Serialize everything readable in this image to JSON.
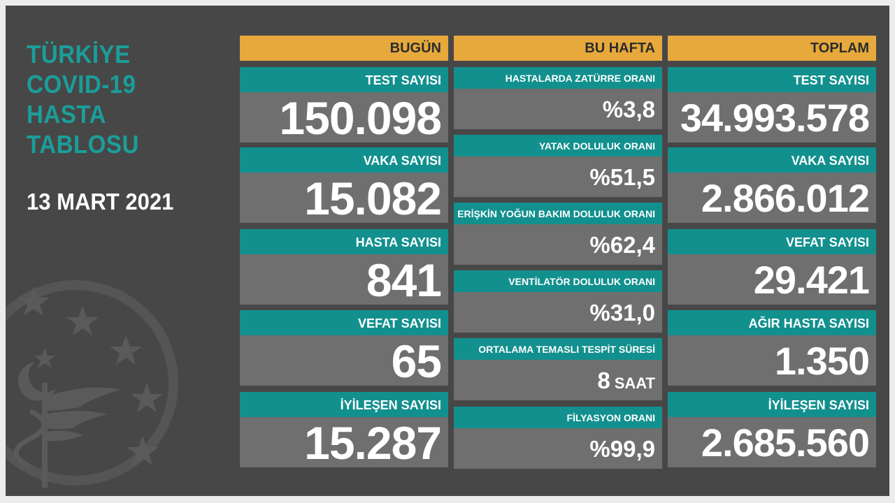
{
  "title_lines": [
    "TÜRKİYE",
    "COVID-19",
    "HASTA",
    "TABLOSU"
  ],
  "date": "13 MART 2021",
  "colors": {
    "background": "#474747",
    "teal": "#12908e",
    "orange": "#e7a93c",
    "value_bg": "#6f6f6f"
  },
  "today": {
    "header": "BUGÜN",
    "items": [
      {
        "label": "TEST SAYISI",
        "value": "150.098"
      },
      {
        "label": "VAKA SAYISI",
        "value": "15.082"
      },
      {
        "label": "HASTA SAYISI",
        "value": "841"
      },
      {
        "label": "VEFAT SAYISI",
        "value": "65"
      },
      {
        "label": "İYİLEŞEN SAYISI",
        "value": "15.287"
      }
    ]
  },
  "week": {
    "header": "BU HAFTA",
    "items": [
      {
        "label": "HASTALARDA ZATÜRRE ORANI",
        "value": "%3,8"
      },
      {
        "label": "YATAK DOLULUK ORANI",
        "value": "%51,5"
      },
      {
        "label": "ERİŞKİN YOĞUN BAKIM DOLULUK ORANI",
        "value": "%62,4"
      },
      {
        "label": "VENTİLATÖR DOLULUK ORANI",
        "value": "%31,0"
      },
      {
        "label": "ORTALAMA TEMASLI TESPİT SÜRESİ",
        "value": "8",
        "unit": "SAAT"
      },
      {
        "label": "FİLYASYON ORANI",
        "value": "%99,9"
      }
    ]
  },
  "total": {
    "header": "TOPLAM",
    "items": [
      {
        "label": "TEST SAYISI",
        "value": "34.993.578"
      },
      {
        "label": "VAKA SAYISI",
        "value": "2.866.012"
      },
      {
        "label": "VEFAT SAYISI",
        "value": "29.421"
      },
      {
        "label": "AĞIR HASTA SAYISI",
        "value": "1.350"
      },
      {
        "label": "İYİLEŞEN SAYISI",
        "value": "2.685.560"
      }
    ]
  }
}
